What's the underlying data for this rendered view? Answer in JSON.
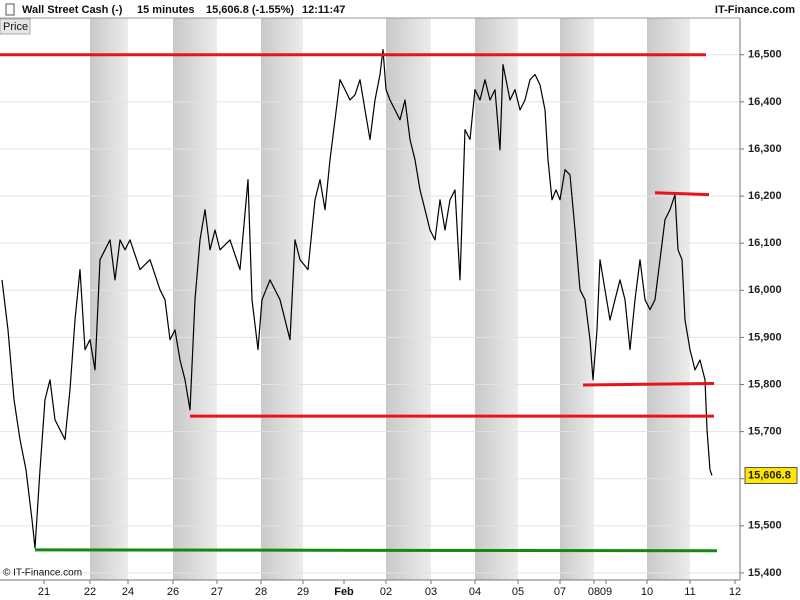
{
  "header": {
    "instrument": "Wall Street Cash (-)",
    "timeframe": "15 minutes",
    "quote": "15,606.8 (-1.55%)",
    "time": "12:11:47",
    "brand": "IT-Finance.com",
    "tab": "Price"
  },
  "footer": {
    "copyright": "© IT-Finance.com"
  },
  "chart_data": {
    "type": "line",
    "color": "#000000",
    "grid": true,
    "xlim": [
      0,
      740
    ],
    "ylim": [
      15385,
      16578
    ],
    "xticks": [
      {
        "value": 44,
        "label": "21"
      },
      {
        "value": 90,
        "label": "22"
      },
      {
        "value": 128,
        "label": "24"
      },
      {
        "value": 173,
        "label": "26"
      },
      {
        "value": 217,
        "label": "27"
      },
      {
        "value": 261,
        "label": "28"
      },
      {
        "value": 303,
        "label": "29"
      },
      {
        "value": 344,
        "label": "Feb"
      },
      {
        "value": 386,
        "label": "02"
      },
      {
        "value": 431,
        "label": "03"
      },
      {
        "value": 475,
        "label": "04"
      },
      {
        "value": 518,
        "label": "05"
      },
      {
        "value": 560,
        "label": "07"
      },
      {
        "value": 594,
        "label": "08"
      },
      {
        "value": 606,
        "label": "09"
      },
      {
        "value": 647,
        "label": "10"
      },
      {
        "value": 690,
        "label": "11"
      },
      {
        "value": 735,
        "label": "12"
      }
    ],
    "yticks": [
      {
        "value": 15400,
        "label": "15,400"
      },
      {
        "value": 15500,
        "label": "15,500"
      },
      {
        "value": 15600,
        "label": "15,600"
      },
      {
        "value": 15700,
        "label": "15,700"
      },
      {
        "value": 15800,
        "label": "15,800"
      },
      {
        "value": 15900,
        "label": "15,900"
      },
      {
        "value": 16000,
        "label": "16,000"
      },
      {
        "value": 16100,
        "label": "16,100"
      },
      {
        "value": 16200,
        "label": "16,200"
      },
      {
        "value": 16300,
        "label": "16,300"
      },
      {
        "value": 16400,
        "label": "16,400"
      },
      {
        "value": 16500,
        "label": "16,500"
      }
    ],
    "x": [
      2,
      8,
      14,
      20,
      26,
      32,
      35,
      40,
      45,
      50,
      55,
      60,
      65,
      70,
      75,
      80,
      85,
      90,
      95,
      100,
      105,
      110,
      115,
      120,
      125,
      130,
      140,
      150,
      160,
      165,
      170,
      175,
      180,
      185,
      190,
      195,
      200,
      205,
      210,
      215,
      220,
      230,
      240,
      248,
      252,
      258,
      262,
      270,
      280,
      290,
      295,
      300,
      308,
      315,
      320,
      325,
      330,
      335,
      340,
      345,
      350,
      355,
      360,
      365,
      370,
      375,
      380,
      383,
      386,
      390,
      395,
      400,
      405,
      410,
      415,
      420,
      425,
      430,
      435,
      440,
      445,
      450,
      455,
      460,
      465,
      470,
      475,
      480,
      485,
      490,
      495,
      500,
      503,
      506,
      510,
      515,
      520,
      525,
      530,
      535,
      540,
      545,
      548,
      552,
      556,
      560,
      565,
      570,
      575,
      580,
      585,
      590,
      593,
      597,
      600,
      605,
      610,
      615,
      620,
      625,
      630,
      635,
      640,
      645,
      650,
      655,
      660,
      665,
      670,
      675,
      678,
      682,
      685,
      690,
      695,
      700,
      705,
      707,
      710,
      712
    ],
    "values": [
      16022,
      15916,
      15768,
      15683,
      15619,
      15513,
      15453,
      15619,
      15768,
      15810,
      15725,
      15704,
      15683,
      15789,
      15937,
      16044,
      15874,
      15895,
      15831,
      16065,
      16086,
      16107,
      16022,
      16107,
      16086,
      16107,
      16044,
      16065,
      16001,
      15980,
      15895,
      15916,
      15852,
      15810,
      15746,
      15980,
      16107,
      16171,
      16086,
      16128,
      16086,
      16107,
      16044,
      16235,
      15980,
      15874,
      15980,
      16022,
      15980,
      15895,
      16107,
      16065,
      16044,
      16192,
      16235,
      16171,
      16277,
      16362,
      16447,
      16426,
      16404,
      16415,
      16447,
      16383,
      16320,
      16404,
      16458,
      16511,
      16426,
      16404,
      16383,
      16362,
      16404,
      16320,
      16277,
      16213,
      16171,
      16128,
      16107,
      16192,
      16128,
      16192,
      16213,
      16022,
      16341,
      16320,
      16426,
      16404,
      16447,
      16404,
      16426,
      16298,
      16479,
      16447,
      16404,
      16426,
      16383,
      16404,
      16447,
      16458,
      16436,
      16383,
      16277,
      16192,
      16213,
      16192,
      16256,
      16245,
      16128,
      16001,
      15980,
      15895,
      15810,
      15916,
      16065,
      16001,
      15937,
      15980,
      16022,
      15980,
      15874,
      15980,
      16065,
      15980,
      15959,
      15980,
      16065,
      16150,
      16171,
      16203,
      16086,
      16065,
      15937,
      15874,
      15831,
      15852,
      15810,
      15704,
      15619,
      15606.8
    ],
    "last_price": {
      "value": 15606.8,
      "label": "15,606.8"
    },
    "lines": [
      {
        "x": [
          0,
          706
        ],
        "values": [
          16500,
          16500
        ],
        "color": "#e8141b"
      },
      {
        "x": [
          655,
          709
        ],
        "values": [
          16207,
          16203
        ],
        "color": "#e8141b"
      },
      {
        "x": [
          583,
          714
        ],
        "values": [
          15799,
          15802
        ],
        "color": "#e8141b"
      },
      {
        "x": [
          190,
          714
        ],
        "values": [
          15733,
          15733
        ],
        "color": "#e8141b"
      },
      {
        "x": [
          35,
          717
        ],
        "values": [
          15449,
          15447
        ],
        "color": "#128a12"
      }
    ]
  }
}
